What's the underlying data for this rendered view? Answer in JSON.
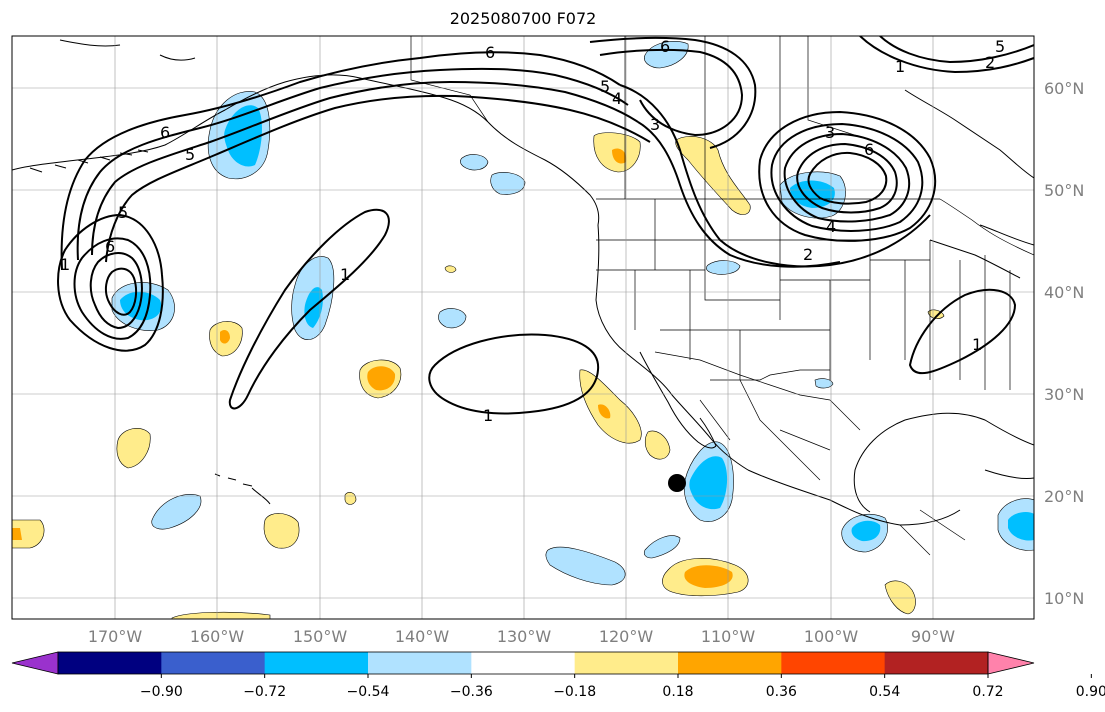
{
  "title": "2025080700 F072",
  "lon_labels": [
    "170°W",
    "160°W",
    "150°W",
    "140°W",
    "130°W",
    "120°W",
    "110°W",
    "100°W",
    "90°W"
  ],
  "lat_labels": [
    "60°N",
    "50°N",
    "40°N",
    "30°N",
    "20°N",
    "10°N"
  ],
  "colorbar": {
    "tick_labels": [
      "−0.90",
      "−0.72",
      "−0.54",
      "−0.36",
      "−0.18",
      "0.18",
      "0.36",
      "0.54",
      "0.72",
      "0.90"
    ],
    "colors": [
      "#9a32cd",
      "#000080",
      "#3a5fcd",
      "#00bfff",
      "#b0e2ff",
      "#ffffff",
      "#ffec8b",
      "#ffa500",
      "#ff4500",
      "#b22222",
      "#ff82ab"
    ]
  },
  "contour_labels": [
    "6",
    "6",
    "5",
    "5",
    "6",
    "1",
    "5",
    "4",
    "3",
    "3",
    "2",
    "4",
    "6",
    "1",
    "1",
    "2",
    "1",
    "5",
    "6",
    "1"
  ],
  "marker": {
    "type": "black-dot",
    "lat": "21.3°N",
    "lon": "115.3°W"
  }
}
